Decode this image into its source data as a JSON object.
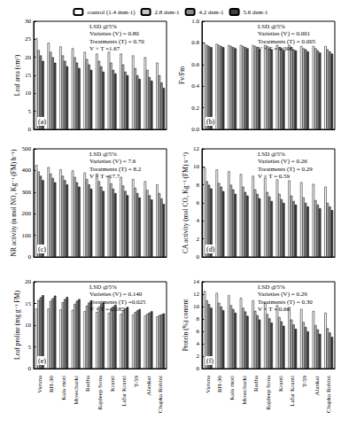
{
  "chart_data": [
    {
      "type": "bar",
      "title": "(a)",
      "y_label": "Leaf area (cm²)",
      "legend": "top",
      "tick_labels": "y",
      "categories": [
        "Varuna",
        "RH-30",
        "Kala moti",
        "Mowchurki",
        "Radha",
        "Rajdeep Sona",
        "Kranti",
        "Lafar Kranti",
        "T-59",
        "Alankar",
        "Chapka Rohini"
      ],
      "ylim": [
        0,
        30
      ],
      "yticks": [
        0,
        5,
        10,
        15,
        20,
        25,
        30
      ],
      "annotations": [
        "LSD @5%",
        "Varieties (V) = 0.80",
        "Treatments (T) = 0.70",
        "V × T =1.67"
      ],
      "series": [
        {
          "name": "control (1.4 dsm-1)",
          "color": "#ffffff",
          "values": [
            25.3,
            24,
            23,
            22.5,
            21.5,
            21,
            21.5,
            21,
            20.5,
            20,
            18.5
          ]
        },
        {
          "name": "2.8 dsm-1",
          "color": "#c8c8c8",
          "values": [
            22,
            21.5,
            20.5,
            20,
            19.5,
            19,
            18.5,
            18,
            17,
            16.5,
            15
          ]
        },
        {
          "name": "4.2 dsm-1",
          "color": "#8c8c8c",
          "values": [
            20.5,
            20,
            19,
            18.5,
            18,
            17.5,
            16.5,
            16,
            15,
            14.5,
            13
          ]
        },
        {
          "name": "5.6 dsm-1",
          "color": "#404040",
          "values": [
            19,
            18.5,
            17.5,
            17,
            16.5,
            16,
            15.5,
            15,
            14,
            13.5,
            11.5
          ]
        }
      ]
    },
    {
      "type": "bar",
      "title": "(b)",
      "y_label": "Fv/Fm",
      "tick_labels": "y",
      "categories": [
        "Varuna",
        "RH-30",
        "Kala moti",
        "Mowchurki",
        "Radha",
        "Rajdeep Sona",
        "Kranti",
        "Lafar Kranti",
        "T-59",
        "Alankar",
        "Chapka Rohini"
      ],
      "ylim": [
        0,
        1
      ],
      "yticks": [
        {
          "value": 0,
          "label": "0.0"
        },
        0.2,
        0.4,
        0.6,
        0.8,
        {
          "value": 1,
          "label": "1.0"
        }
      ],
      "annotations": [
        "LSD @5%",
        "Varieties (V) = 0.001",
        "Treatments (T) = 0.005",
        "V × T = 0.006"
      ],
      "series": [
        {
          "name": "control (1.4 dsm-1)",
          "color": "#ffffff",
          "values": [
            0.79,
            0.79,
            0.78,
            0.78,
            0.78,
            0.78,
            0.78,
            0.78,
            0.77,
            0.77,
            0.77
          ]
        },
        {
          "name": "2.8 dsm-1",
          "color": "#c8c8c8",
          "values": [
            0.78,
            0.78,
            0.77,
            0.77,
            0.77,
            0.77,
            0.76,
            0.76,
            0.75,
            0.75,
            0.74
          ]
        },
        {
          "name": "4.2 dsm-1",
          "color": "#8c8c8c",
          "values": [
            0.77,
            0.77,
            0.76,
            0.76,
            0.76,
            0.75,
            0.75,
            0.74,
            0.74,
            0.73,
            0.72
          ]
        },
        {
          "name": "5.6 dsm-1",
          "color": "#404040",
          "values": [
            0.76,
            0.76,
            0.75,
            0.75,
            0.74,
            0.74,
            0.73,
            0.73,
            0.72,
            0.71,
            0.7
          ]
        }
      ]
    },
    {
      "type": "bar",
      "title": "(c)",
      "y_label": "NR activity (n mol NO₂ Kg⁻¹ (FM) h⁻¹)",
      "tick_labels": "y",
      "categories": [
        "Varuna",
        "RH-30",
        "Kala moti",
        "Mowchurki",
        "Radha",
        "Rajdeep Sona",
        "Kranti",
        "Lafar Kranti",
        "T-59",
        "Alankar",
        "Chapka Rohini"
      ],
      "ylim": [
        0,
        500
      ],
      "yticks": [
        0,
        100,
        200,
        300,
        400,
        500
      ],
      "annotations": [
        "LSD @5%",
        "Varieties (V) = 7.6",
        "Treatments (T) = 8.2",
        "V × T =17.7"
      ],
      "series": [
        {
          "name": "control (1.4 dsm-1)",
          "color": "#ffffff",
          "values": [
            425,
            415,
            405,
            400,
            390,
            385,
            375,
            370,
            360,
            350,
            335
          ]
        },
        {
          "name": "2.8 dsm-1",
          "color": "#c8c8c8",
          "values": [
            395,
            385,
            375,
            370,
            360,
            350,
            340,
            330,
            320,
            310,
            295
          ]
        },
        {
          "name": "4.2 dsm-1",
          "color": "#8c8c8c",
          "values": [
            375,
            365,
            355,
            345,
            335,
            325,
            315,
            305,
            295,
            285,
            270
          ]
        },
        {
          "name": "5.6 dsm-1",
          "color": "#404040",
          "values": [
            355,
            345,
            335,
            325,
            315,
            305,
            295,
            285,
            275,
            265,
            245
          ]
        }
      ]
    },
    {
      "type": "bar",
      "title": "(d)",
      "y_label": "CA activity (mol CO₂ Kg⁻¹ (FM) s⁻¹)",
      "tick_labels": "y",
      "categories": [
        "Varuna",
        "RH-30",
        "Kala moti",
        "Mowchurki",
        "Radha",
        "Rajdeep Sona",
        "Kranti",
        "Lafar Kranti",
        "T-59",
        "Alankar",
        "Chapka Rohini"
      ],
      "ylim": [
        0,
        12
      ],
      "yticks": [
        0,
        2,
        4,
        6,
        8,
        10,
        12
      ],
      "annotations": [
        "LSD @5%",
        "Varieties (V) = 0.26",
        "Treatments (T) = 0.29",
        "V × T = 0.59"
      ],
      "series": [
        {
          "name": "control (1.4 dsm-1)",
          "color": "#ffffff",
          "values": [
            9.9,
            9.7,
            9.5,
            9.2,
            9.0,
            8.8,
            8.6,
            8.5,
            8.3,
            8.1,
            7.8
          ]
        },
        {
          "name": "2.8 dsm-1",
          "color": "#c8c8c8",
          "values": [
            8.4,
            8.2,
            8.0,
            7.8,
            7.5,
            7.2,
            7.0,
            6.8,
            6.6,
            6.3,
            6.0
          ]
        },
        {
          "name": "4.2 dsm-1",
          "color": "#8c8c8c",
          "values": [
            8.0,
            7.8,
            7.5,
            7.2,
            7.0,
            6.7,
            6.4,
            6.2,
            6.0,
            5.8,
            5.6
          ]
        },
        {
          "name": "5.6 dsm-1",
          "color": "#404040",
          "values": [
            7.6,
            7.3,
            7.0,
            6.8,
            6.5,
            6.2,
            6.0,
            5.8,
            5.6,
            5.4,
            5.2
          ]
        }
      ]
    },
    {
      "type": "bar",
      "title": "(e)",
      "y_label": "Leaf proline (mg g⁻¹ FM)",
      "categories": [
        "Varuna",
        "RH-30",
        "Kala moti",
        "Mowchurki",
        "Radha",
        "Rajdeep Sona",
        "Kranti",
        "Lafar Kranti",
        "T-59",
        "Alankar",
        "Chapka Rohini"
      ],
      "ylim": [
        0,
        20
      ],
      "yticks": [
        0,
        5,
        10,
        15,
        20
      ],
      "annotations": [
        "LSD @5%",
        "Varieties (V) = 0.140",
        "Treatments (T) =0.025",
        "V × T = 0.185"
      ],
      "series": [
        {
          "name": "control (1.4 dsm-1)",
          "color": "#ffffff",
          "values": [
            13.8,
            13.8,
            13.6,
            13.5,
            13.2,
            13.0,
            12.8,
            12.6,
            12.4,
            12.2,
            12.0
          ]
        },
        {
          "name": "2.8 dsm-1",
          "color": "#c8c8c8",
          "values": [
            15.8,
            15.6,
            15.3,
            14.9,
            14.5,
            14.2,
            13.8,
            13.4,
            13.0,
            12.6,
            12.3
          ]
        },
        {
          "name": "4.2 dsm-1",
          "color": "#8c8c8c",
          "values": [
            16.4,
            16.2,
            16.0,
            15.6,
            15.2,
            14.8,
            14.3,
            13.9,
            13.4,
            12.9,
            12.5
          ]
        },
        {
          "name": "5.6 dsm-1",
          "color": "#404040",
          "values": [
            16.9,
            16.8,
            16.5,
            16.0,
            15.6,
            15.2,
            14.7,
            14.2,
            13.7,
            13.2,
            12.7
          ]
        }
      ]
    },
    {
      "type": "bar",
      "title": "(f)",
      "y_label": "Protein (%) content",
      "categories": [
        "Varuna",
        "RH-30",
        "Kala moti",
        "Mowchurki",
        "Radha",
        "Rajdeep Sona",
        "Kranti",
        "Lafar Kranti",
        "T-59",
        "Alankar",
        "Chapka Rohini"
      ],
      "ylim": [
        0,
        14
      ],
      "yticks": [
        0,
        2,
        4,
        6,
        8,
        10,
        12,
        14
      ],
      "annotations": [
        "LSD @5%",
        "Varieties (V) = 0.29",
        "Treatments (T) = 0.30",
        "V × T = 0.66"
      ],
      "series": [
        {
          "name": "control (1.4 dsm-1)",
          "color": "#ffffff",
          "values": [
            12.5,
            12.2,
            11.8,
            11.4,
            11.0,
            10.6,
            10.2,
            9.9,
            9.6,
            9.3,
            9.0
          ]
        },
        {
          "name": "2.8 dsm-1",
          "color": "#c8c8c8",
          "values": [
            11.0,
            10.6,
            10.2,
            9.8,
            9.3,
            8.8,
            8.3,
            7.9,
            7.5,
            7.0,
            6.5
          ]
        },
        {
          "name": "4.2 dsm-1",
          "color": "#8c8c8c",
          "values": [
            10.4,
            10.0,
            9.6,
            9.2,
            8.6,
            8.1,
            7.6,
            7.1,
            6.7,
            6.3,
            5.8
          ]
        },
        {
          "name": "5.6 dsm-1",
          "color": "#404040",
          "values": [
            9.8,
            9.4,
            9.0,
            8.5,
            7.9,
            7.4,
            6.9,
            6.4,
            6.0,
            5.6,
            5.1
          ]
        }
      ]
    }
  ]
}
